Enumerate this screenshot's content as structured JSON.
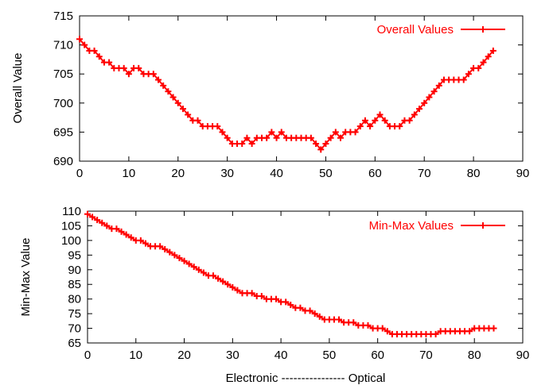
{
  "chart_data": [
    {
      "type": "line",
      "title": "",
      "xlabel": "",
      "ylabel": "Overall Value",
      "xlim": [
        0,
        90
      ],
      "ylim": [
        690,
        715
      ],
      "xticks": [
        0,
        10,
        20,
        30,
        40,
        50,
        60,
        70,
        80,
        90
      ],
      "yticks": [
        690,
        695,
        700,
        705,
        710,
        715
      ],
      "grid": false,
      "legend_position": "top-right",
      "series": [
        {
          "name": "Overall Values",
          "color": "#ff0000",
          "marker": "plus",
          "x": [
            0,
            1,
            2,
            3,
            4,
            5,
            6,
            7,
            8,
            9,
            10,
            11,
            12,
            13,
            14,
            15,
            16,
            17,
            18,
            19,
            20,
            21,
            22,
            23,
            24,
            25,
            26,
            27,
            28,
            29,
            30,
            31,
            32,
            33,
            34,
            35,
            36,
            37,
            38,
            39,
            40,
            41,
            42,
            43,
            44,
            45,
            46,
            47,
            48,
            49,
            50,
            51,
            52,
            53,
            54,
            55,
            56,
            57,
            58,
            59,
            60,
            61,
            62,
            63,
            64,
            65,
            66,
            67,
            68,
            69,
            70,
            71,
            72,
            73,
            74,
            75,
            76,
            77,
            78,
            79,
            80,
            81,
            82,
            83,
            84
          ],
          "y": [
            711,
            710,
            709,
            709,
            708,
            707,
            707,
            706,
            706,
            706,
            705,
            706,
            706,
            705,
            705,
            705,
            704,
            703,
            702,
            701,
            700,
            699,
            698,
            697,
            697,
            696,
            696,
            696,
            696,
            695,
            694,
            693,
            693,
            693,
            694,
            693,
            694,
            694,
            694,
            695,
            694,
            695,
            694,
            694,
            694,
            694,
            694,
            694,
            693,
            692,
            693,
            694,
            695,
            694,
            695,
            695,
            695,
            696,
            697,
            696,
            697,
            698,
            697,
            696,
            696,
            696,
            697,
            697,
            698,
            699,
            700,
            701,
            702,
            703,
            704,
            704,
            704,
            704,
            704,
            705,
            706,
            706,
            707,
            708,
            709
          ]
        }
      ]
    },
    {
      "type": "line",
      "title": "",
      "xlabel": "Electronic ---------------- Optical",
      "ylabel": "Min-Max Value",
      "xlim": [
        0,
        90
      ],
      "ylim": [
        65,
        110
      ],
      "xticks": [
        0,
        10,
        20,
        30,
        40,
        50,
        60,
        70,
        80,
        90
      ],
      "yticks": [
        65,
        70,
        75,
        80,
        85,
        90,
        95,
        100,
        105,
        110
      ],
      "grid": false,
      "legend_position": "top-right",
      "series": [
        {
          "name": "Min-Max Values",
          "color": "#ff0000",
          "marker": "plus",
          "x": [
            0,
            1,
            2,
            3,
            4,
            5,
            6,
            7,
            8,
            9,
            10,
            11,
            12,
            13,
            14,
            15,
            16,
            17,
            18,
            19,
            20,
            21,
            22,
            23,
            24,
            25,
            26,
            27,
            28,
            29,
            30,
            31,
            32,
            33,
            34,
            35,
            36,
            37,
            38,
            39,
            40,
            41,
            42,
            43,
            44,
            45,
            46,
            47,
            48,
            49,
            50,
            51,
            52,
            53,
            54,
            55,
            56,
            57,
            58,
            59,
            60,
            61,
            62,
            63,
            64,
            65,
            66,
            67,
            68,
            69,
            70,
            71,
            72,
            73,
            74,
            75,
            76,
            77,
            78,
            79,
            80,
            81,
            82,
            83,
            84
          ],
          "y": [
            109,
            108,
            107,
            106,
            105,
            104,
            104,
            103,
            102,
            101,
            100,
            100,
            99,
            98,
            98,
            98,
            97,
            96,
            95,
            94,
            93,
            92,
            91,
            90,
            89,
            88,
            88,
            87,
            86,
            85,
            84,
            83,
            82,
            82,
            82,
            81,
            81,
            80,
            80,
            80,
            79,
            79,
            78,
            77,
            77,
            76,
            76,
            75,
            74,
            73,
            73,
            73,
            73,
            72,
            72,
            72,
            71,
            71,
            71,
            70,
            70,
            70,
            69,
            68,
            68,
            68,
            68,
            68,
            68,
            68,
            68,
            68,
            68,
            69,
            69,
            69,
            69,
            69,
            69,
            69,
            70,
            70,
            70,
            70,
            70
          ]
        }
      ]
    }
  ]
}
